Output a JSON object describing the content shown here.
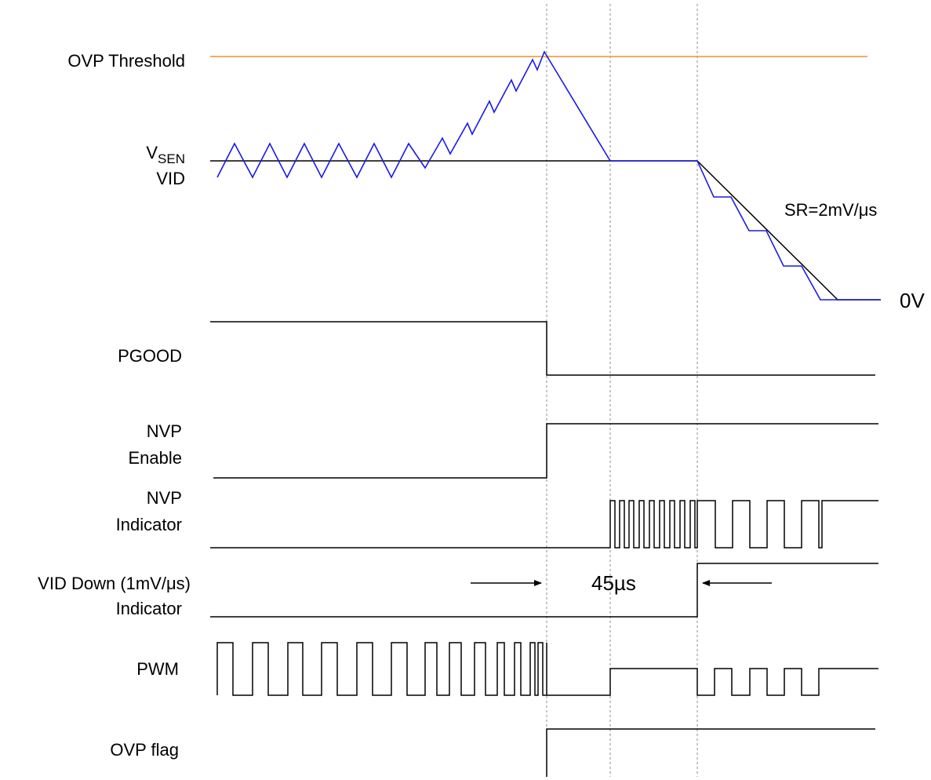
{
  "labels": {
    "ovp_threshold": "OVP Threshold",
    "vsen_main": "V",
    "vsen_sub": "SEN",
    "vid": "VID",
    "sr": "SR=2mV/μs",
    "zero_v": "0V",
    "pgood": "PGOOD",
    "nvp_enable_1": "NVP",
    "nvp_enable_2": "Enable",
    "nvp_indicator_1": "NVP",
    "nvp_indicator_2": "Indicator",
    "vid_down_1": "VID Down (1mV/μs)",
    "vid_down_2": "Indicator",
    "interval": "45µs",
    "pwm": "PWM",
    "ovp_flag": "OVP flag"
  },
  "colors": {
    "threshold": "#f0912d",
    "sr_label": "#c00000",
    "vsen_trace": "#1a1ae6",
    "signal": "#000000",
    "marker": "#8c8c8c"
  }
}
